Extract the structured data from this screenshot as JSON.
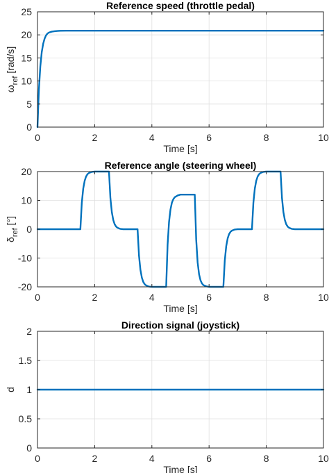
{
  "chart_data": [
    {
      "type": "line",
      "title": "Reference speed (throttle pedal)",
      "xlabel": "Time [s]",
      "ylabel_symbol": "ω",
      "ylabel_sub": "ref",
      "ylabel_unit": " [rad/s]",
      "xlim": [
        0,
        10
      ],
      "ylim": [
        0,
        25
      ],
      "xticks": [
        0,
        2,
        4,
        6,
        8,
        10
      ],
      "yticks": [
        0,
        5,
        10,
        15,
        20,
        25
      ],
      "grid": true,
      "color": "#0072bd",
      "series": [
        {
          "x": [
            0,
            0.05,
            0.1,
            0.15,
            0.2,
            0.25,
            0.3,
            0.35,
            0.4,
            0.5,
            0.6,
            0.7,
            0.8,
            1.0,
            2,
            4,
            6,
            8,
            10
          ],
          "y": [
            0,
            8.2,
            13.2,
            16.3,
            18.1,
            19.2,
            19.9,
            20.3,
            20.5,
            20.7,
            20.8,
            20.85,
            20.88,
            20.9,
            20.9,
            20.9,
            20.9,
            20.9,
            20.9
          ]
        }
      ]
    },
    {
      "type": "line",
      "title": "Reference angle (steering wheel)",
      "xlabel": "Time [s]",
      "ylabel_symbol": "δ",
      "ylabel_sub": "ref",
      "ylabel_unit": " [°]",
      "xlim": [
        0,
        10
      ],
      "ylim": [
        -20,
        20
      ],
      "xticks": [
        0,
        2,
        4,
        6,
        8,
        10
      ],
      "yticks": [
        -20,
        -10,
        0,
        10,
        20
      ],
      "grid": true,
      "color": "#0072bd",
      "series": [
        {
          "x": [
            0,
            1.5,
            1.55,
            1.6,
            1.65,
            1.7,
            1.75,
            1.8,
            1.9,
            2.0,
            2.5,
            2.55,
            2.6,
            2.65,
            2.7,
            2.75,
            2.8,
            2.9,
            3.0,
            3.5,
            3.55,
            3.6,
            3.65,
            3.7,
            3.75,
            3.8,
            3.9,
            4.0,
            4.5,
            4.55,
            4.6,
            4.65,
            4.7,
            4.75,
            4.8,
            4.9,
            5.0,
            5.5,
            5.55,
            5.6,
            5.65,
            5.7,
            5.75,
            5.8,
            5.9,
            6.0,
            6.5,
            6.55,
            6.6,
            6.65,
            6.7,
            6.75,
            6.8,
            6.9,
            7.0,
            7.5,
            7.55,
            7.6,
            7.65,
            7.7,
            7.75,
            7.8,
            7.9,
            8.0,
            8.5,
            8.55,
            8.6,
            8.65,
            8.7,
            8.75,
            8.8,
            8.9,
            9.0,
            10
          ],
          "y": [
            0,
            0,
            9.2,
            14.1,
            16.8,
            18.3,
            19.1,
            19.5,
            19.9,
            20,
            20,
            10.8,
            5.9,
            3.2,
            1.7,
            0.9,
            0.5,
            0.1,
            0,
            0,
            -9.2,
            -14.1,
            -16.8,
            -18.3,
            -19.1,
            -19.5,
            -19.9,
            -20,
            -20,
            -5.4,
            2.5,
            6.8,
            9.2,
            10.4,
            11.1,
            11.7,
            12,
            12,
            -3.6,
            -11.5,
            -15.6,
            -17.7,
            -18.8,
            -19.4,
            -19.8,
            -20,
            -20,
            -10.8,
            -5.9,
            -3.2,
            -1.7,
            -0.9,
            -0.5,
            -0.1,
            0,
            0,
            9.2,
            14.1,
            16.8,
            18.3,
            19.1,
            19.5,
            19.9,
            20,
            20,
            10.8,
            5.9,
            3.2,
            1.7,
            0.9,
            0.5,
            0.1,
            0,
            0
          ]
        }
      ]
    },
    {
      "type": "line",
      "title": "Direction signal (joystick)",
      "xlabel": "Time [s]",
      "ylabel_symbol": "d",
      "ylabel_sub": "",
      "ylabel_unit": "",
      "xlim": [
        0,
        10
      ],
      "ylim": [
        0,
        2
      ],
      "xticks": [
        0,
        2,
        4,
        6,
        8,
        10
      ],
      "yticks": [
        0,
        0.5,
        1,
        1.5,
        2
      ],
      "grid": true,
      "color": "#0072bd",
      "series": [
        {
          "x": [
            0,
            10
          ],
          "y": [
            1,
            1
          ]
        }
      ]
    }
  ]
}
